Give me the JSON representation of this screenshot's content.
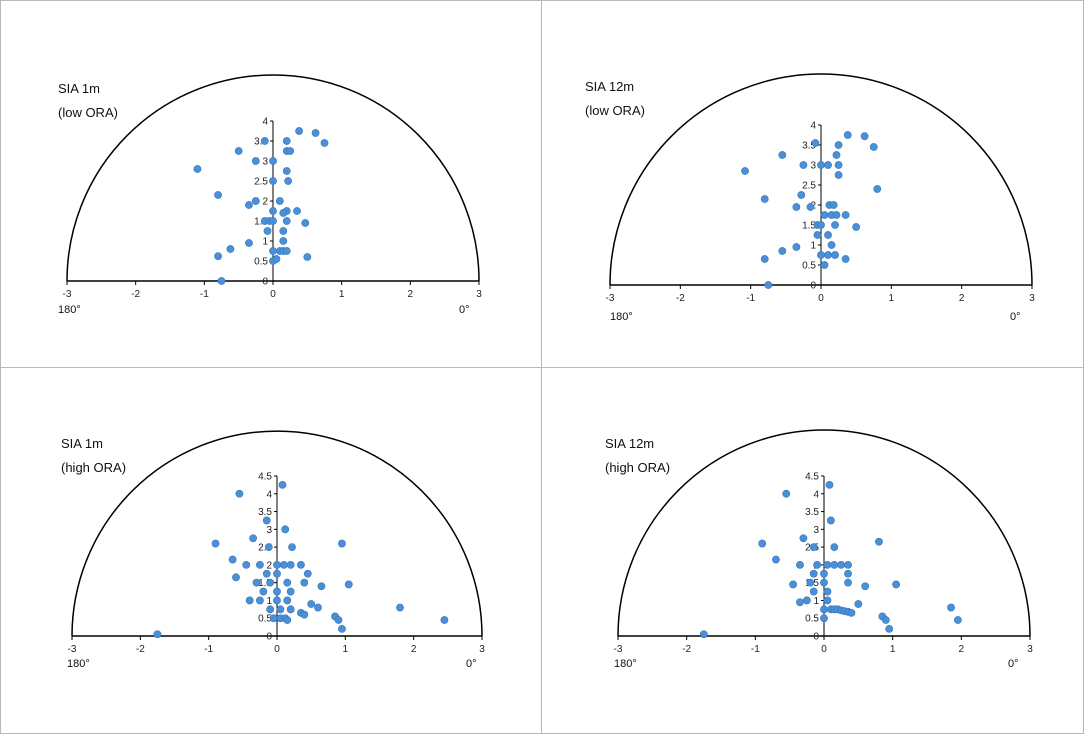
{
  "chart_data": [
    {
      "type": "scatter",
      "title": "SIA 1m",
      "subtitle": "(low ORA)",
      "xlim": [
        -3,
        3
      ],
      "ylim": [
        0,
        4
      ],
      "x_ticks": [
        "-3",
        "-2",
        "-1",
        "0",
        "1",
        "2",
        "3"
      ],
      "y_ticks": [
        "0",
        "0.5",
        "1",
        "1.5",
        "2",
        "2.5",
        "3",
        "3.5",
        "4"
      ],
      "left_angle_label": "180°",
      "right_angle_label": "0°",
      "color": "#4a90d9",
      "points": [
        [
          0.38,
          3.75
        ],
        [
          0.62,
          3.7
        ],
        [
          0.75,
          3.45
        ],
        [
          -0.12,
          3.5
        ],
        [
          0.2,
          3.5
        ],
        [
          -0.5,
          3.25
        ],
        [
          0.2,
          3.25
        ],
        [
          0.25,
          3.25
        ],
        [
          -0.25,
          3.0
        ],
        [
          0.0,
          3.0
        ],
        [
          -1.1,
          2.8
        ],
        [
          0.2,
          2.75
        ],
        [
          0.22,
          2.5
        ],
        [
          0.0,
          2.5
        ],
        [
          -0.8,
          2.15
        ],
        [
          0.1,
          2.0
        ],
        [
          -0.25,
          2.0
        ],
        [
          -0.35,
          1.9
        ],
        [
          0.0,
          1.75
        ],
        [
          0.2,
          1.75
        ],
        [
          0.35,
          1.75
        ],
        [
          0.15,
          1.7
        ],
        [
          -0.12,
          1.5
        ],
        [
          -0.05,
          1.5
        ],
        [
          0.0,
          1.5
        ],
        [
          0.2,
          1.5
        ],
        [
          0.47,
          1.45
        ],
        [
          -0.08,
          1.25
        ],
        [
          0.15,
          1.25
        ],
        [
          -0.35,
          0.95
        ],
        [
          0.15,
          1.0
        ],
        [
          -0.62,
          0.8
        ],
        [
          0.0,
          0.75
        ],
        [
          0.1,
          0.75
        ],
        [
          0.15,
          0.75
        ],
        [
          0.2,
          0.75
        ],
        [
          -0.8,
          0.62
        ],
        [
          0.5,
          0.6
        ],
        [
          0.0,
          0.5
        ],
        [
          0.05,
          0.55
        ],
        [
          -0.75,
          0.0
        ]
      ]
    },
    {
      "type": "scatter",
      "title": "SIA 12m",
      "subtitle": "(low ORA)",
      "xlim": [
        -3,
        3
      ],
      "ylim": [
        0,
        4
      ],
      "x_ticks": [
        "-3",
        "-2",
        "-1",
        "0",
        "1",
        "2",
        "3"
      ],
      "y_ticks": [
        "0",
        "0.5",
        "1",
        "1.5",
        "2",
        "2.5",
        "3",
        "3.5",
        "4"
      ],
      "left_angle_label": "180°",
      "right_angle_label": "0°",
      "color": "#4a90d9",
      "points": [
        [
          0.38,
          3.75
        ],
        [
          0.62,
          3.72
        ],
        [
          0.75,
          3.45
        ],
        [
          -0.08,
          3.55
        ],
        [
          0.25,
          3.5
        ],
        [
          -0.55,
          3.25
        ],
        [
          0.22,
          3.25
        ],
        [
          -0.25,
          3.0
        ],
        [
          0.0,
          3.0
        ],
        [
          0.1,
          3.0
        ],
        [
          0.25,
          3.0
        ],
        [
          -1.08,
          2.85
        ],
        [
          0.25,
          2.75
        ],
        [
          -0.28,
          2.25
        ],
        [
          0.8,
          2.4
        ],
        [
          -0.8,
          2.15
        ],
        [
          0.12,
          2.0
        ],
        [
          0.18,
          2.0
        ],
        [
          -0.35,
          1.95
        ],
        [
          -0.15,
          1.95
        ],
        [
          0.05,
          1.75
        ],
        [
          0.15,
          1.75
        ],
        [
          0.22,
          1.75
        ],
        [
          0.35,
          1.75
        ],
        [
          -0.05,
          1.5
        ],
        [
          0.0,
          1.5
        ],
        [
          0.2,
          1.5
        ],
        [
          0.5,
          1.45
        ],
        [
          -0.05,
          1.25
        ],
        [
          0.1,
          1.25
        ],
        [
          -0.35,
          0.95
        ],
        [
          0.15,
          1.0
        ],
        [
          -0.55,
          0.85
        ],
        [
          0.0,
          0.75
        ],
        [
          0.1,
          0.75
        ],
        [
          0.2,
          0.75
        ],
        [
          0.35,
          0.65
        ],
        [
          -0.8,
          0.65
        ],
        [
          0.05,
          0.5
        ],
        [
          -0.75,
          0.0
        ]
      ]
    },
    {
      "type": "scatter",
      "title": "SIA 1m",
      "subtitle": "(high ORA)",
      "xlim": [
        -3,
        3
      ],
      "ylim": [
        0,
        4.5
      ],
      "x_ticks": [
        "-3",
        "-2",
        "-1",
        "0",
        "1",
        "2",
        "3"
      ],
      "y_ticks": [
        "0",
        "0.5",
        "1",
        "1.5",
        "2",
        "2.5",
        "3",
        "3.5",
        "4",
        "4.5"
      ],
      "left_angle_label": "180°",
      "right_angle_label": "0°",
      "color": "#4a90d9",
      "points": [
        [
          0.08,
          4.25
        ],
        [
          -0.55,
          4.0
        ],
        [
          -0.15,
          3.25
        ],
        [
          0.12,
          3.0
        ],
        [
          -0.35,
          2.75
        ],
        [
          -0.9,
          2.6
        ],
        [
          0.22,
          2.5
        ],
        [
          -0.12,
          2.5
        ],
        [
          0.95,
          2.6
        ],
        [
          -0.65,
          2.15
        ],
        [
          -0.45,
          2.0
        ],
        [
          -0.25,
          2.0
        ],
        [
          0.0,
          2.0
        ],
        [
          0.1,
          2.0
        ],
        [
          0.2,
          2.0
        ],
        [
          0.35,
          2.0
        ],
        [
          0.45,
          1.75
        ],
        [
          -0.15,
          1.75
        ],
        [
          0.0,
          1.75
        ],
        [
          -0.6,
          1.65
        ],
        [
          0.4,
          1.5
        ],
        [
          0.15,
          1.5
        ],
        [
          -0.3,
          1.5
        ],
        [
          -0.1,
          1.5
        ],
        [
          0.65,
          1.4
        ],
        [
          1.05,
          1.45
        ],
        [
          -0.2,
          1.25
        ],
        [
          0.0,
          1.25
        ],
        [
          0.2,
          1.25
        ],
        [
          -0.4,
          1.0
        ],
        [
          -0.25,
          1.0
        ],
        [
          0.0,
          1.0
        ],
        [
          0.15,
          1.0
        ],
        [
          0.5,
          0.9
        ],
        [
          0.6,
          0.8
        ],
        [
          1.8,
          0.8
        ],
        [
          -0.1,
          0.75
        ],
        [
          0.05,
          0.75
        ],
        [
          0.2,
          0.75
        ],
        [
          0.35,
          0.65
        ],
        [
          0.4,
          0.6
        ],
        [
          0.85,
          0.55
        ],
        [
          0.9,
          0.45
        ],
        [
          2.45,
          0.45
        ],
        [
          -0.05,
          0.5
        ],
        [
          0.05,
          0.5
        ],
        [
          0.12,
          0.5
        ],
        [
          0.15,
          0.45
        ],
        [
          0.95,
          0.2
        ],
        [
          -1.75,
          0.05
        ]
      ]
    },
    {
      "type": "scatter",
      "title": "SIA 12m",
      "subtitle": "(high ORA)",
      "xlim": [
        -3,
        3
      ],
      "ylim": [
        0,
        4.5
      ],
      "x_ticks": [
        "-3",
        "-2",
        "-1",
        "0",
        "1",
        "2",
        "3"
      ],
      "y_ticks": [
        "0",
        "0.5",
        "1",
        "1.5",
        "2",
        "2.5",
        "3",
        "3.5",
        "4",
        "4.5"
      ],
      "left_angle_label": "180°",
      "right_angle_label": "0°",
      "color": "#4a90d9",
      "points": [
        [
          0.08,
          4.25
        ],
        [
          -0.55,
          4.0
        ],
        [
          0.1,
          3.25
        ],
        [
          -0.9,
          2.6
        ],
        [
          0.8,
          2.65
        ],
        [
          -0.3,
          2.75
        ],
        [
          -0.15,
          2.5
        ],
        [
          0.15,
          2.5
        ],
        [
          -0.7,
          2.15
        ],
        [
          -0.35,
          2.0
        ],
        [
          -0.1,
          2.0
        ],
        [
          0.05,
          2.0
        ],
        [
          0.15,
          2.0
        ],
        [
          0.25,
          2.0
        ],
        [
          0.35,
          2.0
        ],
        [
          -0.15,
          1.75
        ],
        [
          0.0,
          1.75
        ],
        [
          0.35,
          1.75
        ],
        [
          -0.45,
          1.45
        ],
        [
          -0.2,
          1.5
        ],
        [
          0.0,
          1.5
        ],
        [
          0.35,
          1.5
        ],
        [
          0.6,
          1.4
        ],
        [
          1.05,
          1.45
        ],
        [
          -0.15,
          1.25
        ],
        [
          0.05,
          1.25
        ],
        [
          -0.35,
          0.95
        ],
        [
          -0.25,
          1.0
        ],
        [
          0.05,
          1.0
        ],
        [
          0.5,
          0.9
        ],
        [
          0.0,
          0.75
        ],
        [
          0.1,
          0.75
        ],
        [
          0.15,
          0.75
        ],
        [
          0.2,
          0.75
        ],
        [
          0.25,
          0.72
        ],
        [
          0.3,
          0.7
        ],
        [
          0.35,
          0.68
        ],
        [
          0.4,
          0.65
        ],
        [
          0.85,
          0.55
        ],
        [
          0.9,
          0.45
        ],
        [
          1.85,
          0.8
        ],
        [
          1.95,
          0.45
        ],
        [
          0.0,
          0.5
        ],
        [
          0.95,
          0.2
        ],
        [
          -1.75,
          0.05
        ]
      ]
    }
  ]
}
